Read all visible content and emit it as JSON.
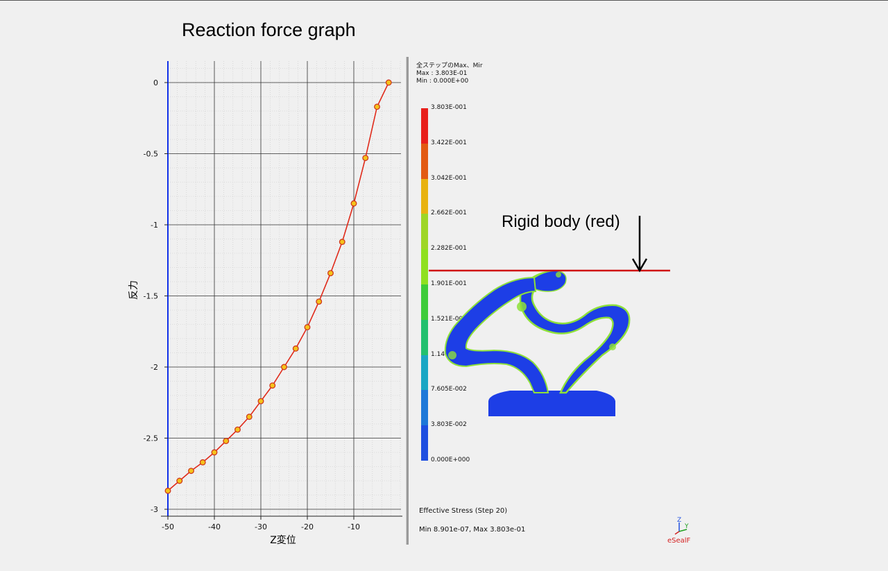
{
  "slide": {
    "title": "Reaction force graph"
  },
  "chart_data": {
    "type": "line",
    "title": "",
    "xlabel": "Z変位",
    "ylabel": "反力",
    "xlim": [
      -50,
      2.5
    ],
    "ylim": [
      -3,
      0
    ],
    "x_ticks": [
      -50,
      -40,
      -30,
      -20,
      -10
    ],
    "y_ticks": [
      0,
      -0.5,
      -1,
      -1.5,
      -2,
      -2.5,
      -3
    ],
    "grid": true,
    "series": [
      {
        "x": [
          -50,
          -47.5,
          -45,
          -42.5,
          -40,
          -37.5,
          -35,
          -32.5,
          -30,
          -27.5,
          -25,
          -22.5,
          -20,
          -17.5,
          -15,
          -12.5,
          -10,
          -7.5,
          -5,
          -2.5
        ],
        "y": [
          -2.87,
          -2.8,
          -2.73,
          -2.67,
          -2.6,
          -2.52,
          -2.44,
          -2.35,
          -2.24,
          -2.13,
          -2.0,
          -1.87,
          -1.72,
          -1.54,
          -1.34,
          -1.12,
          -0.85,
          -0.53,
          -0.17,
          0.0
        ]
      }
    ],
    "colors": {
      "line": "#e02a1a",
      "marker_fill": "#f4c21b",
      "marker_edge": "#d0381c",
      "axis_line": "#1030e8"
    }
  },
  "legend": {
    "header": [
      "全ステップのMax、Mir",
      "Max : 3.803E-01",
      "Min : 0.000E+00"
    ],
    "labels": [
      "3.803E-001",
      "3.422E-001",
      "3.042E-001",
      "2.662E-001",
      "2.282E-001",
      "1.901E-001",
      "1.521E-001",
      "1.141E-001",
      "7.605E-002",
      "3.803E-002",
      "0.000E+000"
    ],
    "colors": [
      "#e8201c",
      "#e25a12",
      "#e8b210",
      "#9ed626",
      "#8fe020",
      "#3ecc3a",
      "#22c06e",
      "#1aa6c4",
      "#1e78d8",
      "#1f4fe0",
      "#2020e0"
    ]
  },
  "annotation": {
    "rigid_body": "Rigid body (red)"
  },
  "model": {
    "colors": {
      "rigid": "#d01010",
      "base": "#1d3ee6",
      "hot": "#8ee03a",
      "edge": "#f0f030"
    }
  },
  "footer": {
    "result_title": "Effective Stress (Step 20)",
    "result_range": "Min 8.901e-07, Max 3.803e-01",
    "brand": "eSealF",
    "triad_z": "Z",
    "triad_y": "Y"
  }
}
